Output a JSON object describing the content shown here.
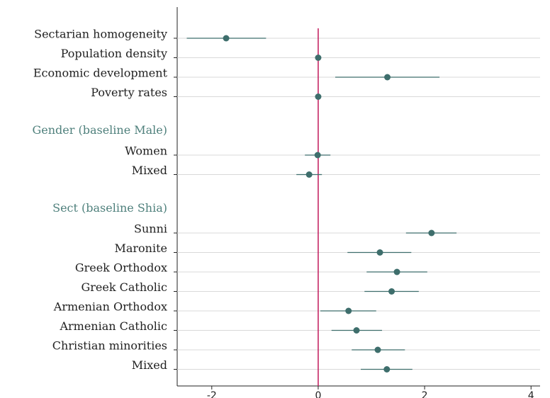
{
  "chart_data": {
    "type": "coefplot",
    "categories": [
      "Sectarian homogeneity",
      "Population density",
      "Economic development",
      "Poverty rates",
      "Gender (baseline Male)",
      "Women",
      "Mixed",
      "Sect (baseline Shia)",
      "Sunni",
      "Maronite",
      "Greek Orthodox",
      "Greek Catholic",
      "Armenian Orthodox",
      "Armenian Catholic",
      "Christian minorities",
      "Mixed"
    ],
    "values": [
      -1.73,
      0.0,
      1.3,
      0.0,
      null,
      -0.01,
      -0.17,
      null,
      2.13,
      1.16,
      1.48,
      1.38,
      0.57,
      0.72,
      1.12,
      1.29
    ],
    "lower": [
      -2.47,
      -0.02,
      0.32,
      -0.02,
      null,
      -0.25,
      -0.41,
      null,
      1.65,
      0.55,
      0.91,
      0.87,
      0.04,
      0.25,
      0.63,
      0.8
    ],
    "upper": [
      -0.98,
      0.02,
      2.28,
      0.02,
      null,
      0.23,
      0.07,
      null,
      2.6,
      1.75,
      2.05,
      1.89,
      1.09,
      1.2,
      1.63,
      1.77
    ],
    "color": "#3e6e6c",
    "header_color": "#4f807c",
    "xlim": [
      -2.65,
      4.17
    ],
    "xticks": [
      -2,
      0,
      2,
      4
    ],
    "refline": 0,
    "refline_color": "#c2185b",
    "grid": true
  }
}
